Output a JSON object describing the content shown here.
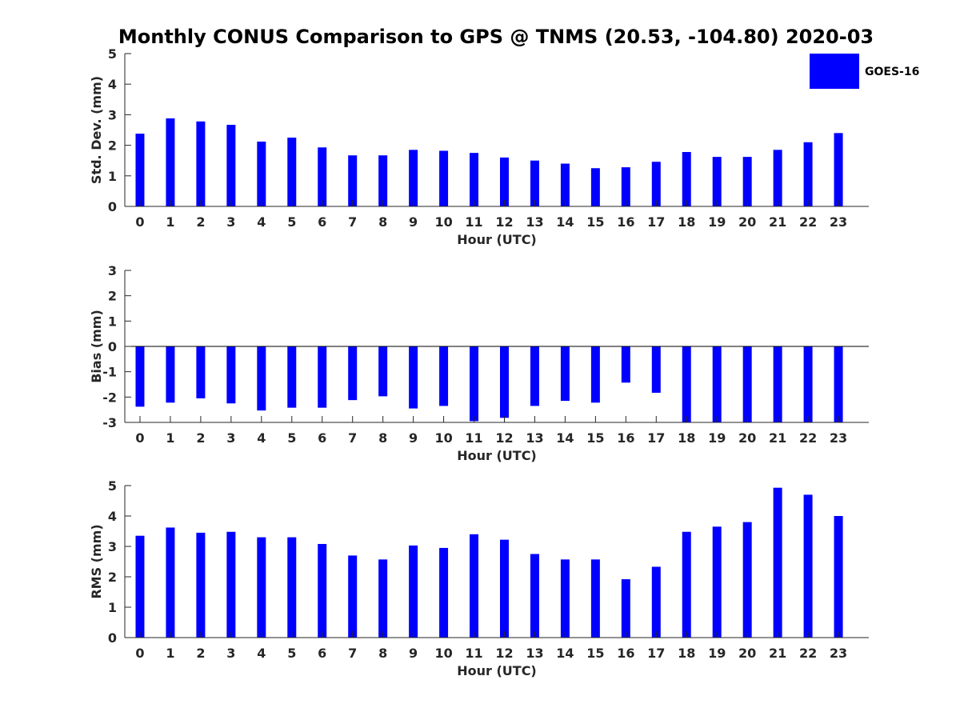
{
  "title": "Monthly CONUS Comparison to GPS @ TNMS (20.53, -104.80) 2020-03",
  "legend": {
    "label": "GOES-16",
    "color": "#0000FF",
    "placement": "top-right"
  },
  "chart_data": [
    {
      "type": "bar",
      "xlabel": "Hour (UTC)",
      "ylabel": "Std. Dev. (mm)",
      "ylim": [
        0,
        5
      ],
      "yticks": [
        0,
        1,
        2,
        3,
        4,
        5
      ],
      "categories": [
        "0",
        "1",
        "2",
        "3",
        "4",
        "5",
        "6",
        "7",
        "8",
        "9",
        "10",
        "11",
        "12",
        "13",
        "14",
        "15",
        "16",
        "17",
        "18",
        "19",
        "20",
        "21",
        "22",
        "23"
      ],
      "series": [
        {
          "name": "GOES-16",
          "color": "#0000FF",
          "values": [
            2.38,
            2.88,
            2.78,
            2.67,
            2.12,
            2.25,
            1.93,
            1.67,
            1.67,
            1.85,
            1.82,
            1.75,
            1.6,
            1.5,
            1.4,
            1.25,
            1.28,
            1.46,
            1.78,
            1.62,
            1.62,
            1.85,
            2.1,
            2.4
          ]
        }
      ],
      "grid": false
    },
    {
      "type": "bar",
      "xlabel": "Hour (UTC)",
      "ylabel": "Bias (mm)",
      "ylim": [
        -3,
        3
      ],
      "yticks": [
        -3,
        -2,
        -1,
        0,
        1,
        2,
        3
      ],
      "categories": [
        "0",
        "1",
        "2",
        "3",
        "4",
        "5",
        "6",
        "7",
        "8",
        "9",
        "10",
        "11",
        "12",
        "13",
        "14",
        "15",
        "16",
        "17",
        "18",
        "19",
        "20",
        "21",
        "22",
        "23"
      ],
      "series": [
        {
          "name": "GOES-16",
          "color": "#0000FF",
          "values": [
            -2.38,
            -2.22,
            -2.05,
            -2.25,
            -2.53,
            -2.42,
            -2.42,
            -2.12,
            -1.97,
            -2.45,
            -2.35,
            -2.95,
            -2.82,
            -2.35,
            -2.15,
            -2.22,
            -1.43,
            -1.83,
            -3.0,
            -3.0,
            -3.0,
            -3.0,
            -3.0,
            -3.0
          ]
        }
      ],
      "grid": false,
      "zero_line": true
    },
    {
      "type": "bar",
      "xlabel": "Hour (UTC)",
      "ylabel": "RMS (mm)",
      "ylim": [
        0,
        5
      ],
      "yticks": [
        0,
        1,
        2,
        3,
        4,
        5
      ],
      "categories": [
        "0",
        "1",
        "2",
        "3",
        "4",
        "5",
        "6",
        "7",
        "8",
        "9",
        "10",
        "11",
        "12",
        "13",
        "14",
        "15",
        "16",
        "17",
        "18",
        "19",
        "20",
        "21",
        "22",
        "23"
      ],
      "series": [
        {
          "name": "GOES-16",
          "color": "#0000FF",
          "values": [
            3.35,
            3.62,
            3.45,
            3.48,
            3.3,
            3.3,
            3.08,
            2.7,
            2.57,
            3.03,
            2.95,
            3.4,
            3.22,
            2.75,
            2.57,
            2.57,
            1.92,
            2.33,
            3.48,
            3.65,
            3.8,
            4.93,
            4.7,
            4.0
          ]
        }
      ],
      "grid": false
    }
  ]
}
